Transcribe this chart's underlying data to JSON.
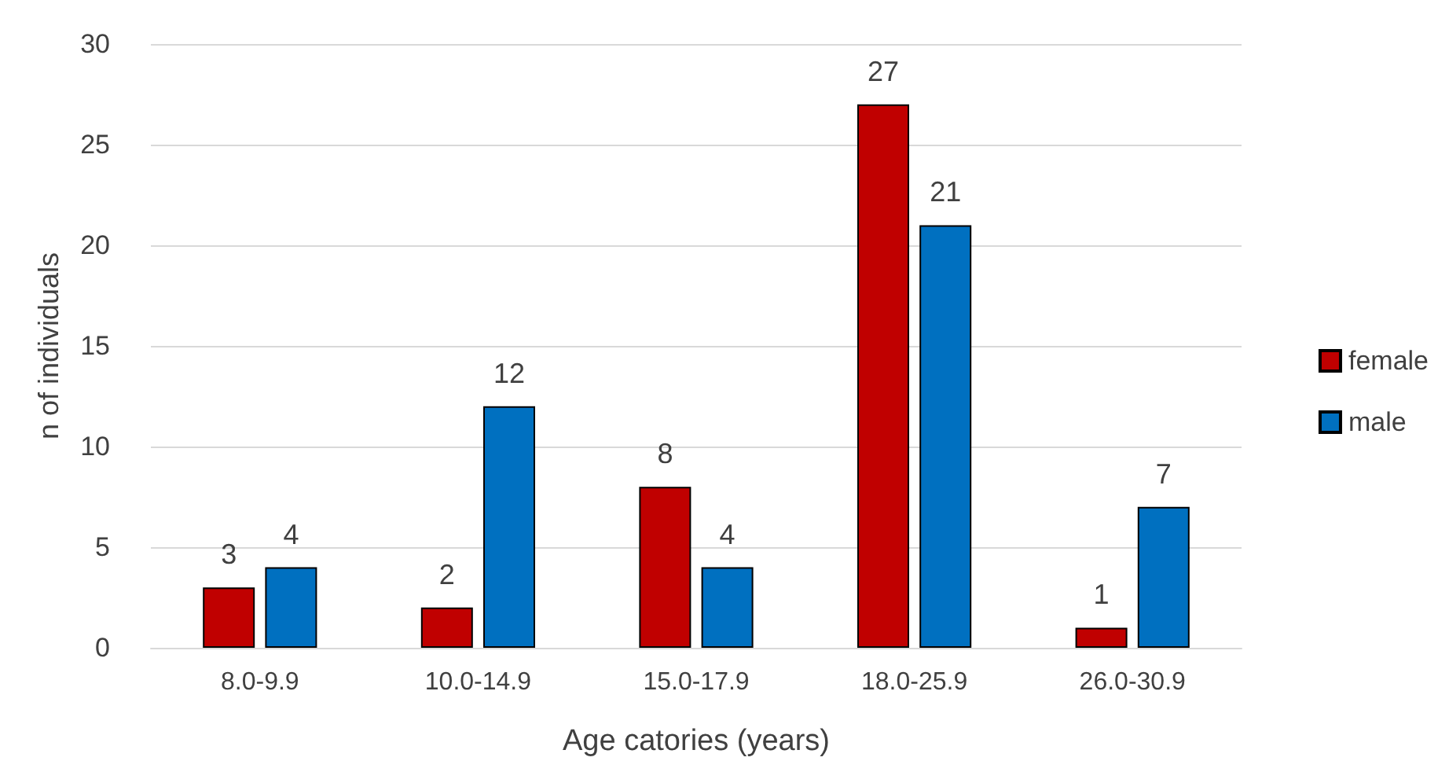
{
  "chart_data": {
    "type": "bar",
    "xlabel": "Age catories (years)",
    "ylabel": "n of individuals",
    "categories": [
      "8.0-9.9",
      "10.0-14.9",
      "15.0-17.9",
      "18.0-25.9",
      "26.0-30.9"
    ],
    "series": [
      {
        "name": "female",
        "color": "#c00000",
        "values": [
          3,
          2,
          8,
          27,
          1
        ]
      },
      {
        "name": "male",
        "color": "#0070c0",
        "values": [
          4,
          12,
          4,
          21,
          7
        ]
      }
    ],
    "ylim": [
      0,
      30
    ],
    "yticks": [
      0,
      5,
      10,
      15,
      20,
      25,
      30
    ],
    "grid": "y",
    "legend": "right",
    "data_labels": true
  }
}
